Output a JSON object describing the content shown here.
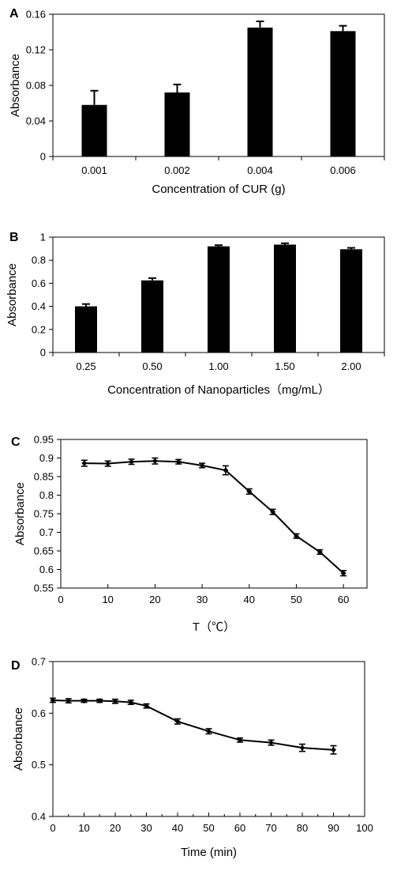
{
  "chart_data": [
    {
      "panel": "A",
      "type": "bar",
      "categories": [
        "0.001",
        "0.002",
        "0.004",
        "0.006"
      ],
      "values": [
        0.058,
        0.072,
        0.145,
        0.141
      ],
      "errors": [
        0.016,
        0.009,
        0.007,
        0.006
      ],
      "xlabel": "Concentration of CUR (g)",
      "ylabel": "Absorbance",
      "ylim": [
        0,
        0.16
      ],
      "yticks": [
        "0",
        "0.04",
        "0.08",
        "0.12",
        "0.16"
      ],
      "grid": false,
      "color": "#000000"
    },
    {
      "panel": "B",
      "type": "bar",
      "categories": [
        "0.25",
        "0.50",
        "1.00",
        "1.50",
        "2.00"
      ],
      "values": [
        0.4,
        0.625,
        0.92,
        0.935,
        0.895
      ],
      "errors": [
        0.02,
        0.02,
        0.01,
        0.012,
        0.012
      ],
      "xlabel": "Concentration of Nanoparticles（mg/mL）",
      "ylabel": "Absorbance",
      "ylim": [
        0,
        1
      ],
      "yticks": [
        "0",
        "0.2",
        "0.4",
        "0.6",
        "0.8",
        "1"
      ],
      "grid": false,
      "color": "#000000"
    },
    {
      "panel": "C",
      "type": "line",
      "x": [
        5,
        10,
        15,
        20,
        25,
        30,
        35,
        40,
        45,
        50,
        55,
        60
      ],
      "y": [
        0.886,
        0.885,
        0.89,
        0.892,
        0.89,
        0.88,
        0.867,
        0.81,
        0.755,
        0.69,
        0.647,
        0.59
      ],
      "errors": [
        0.008,
        0.007,
        0.007,
        0.008,
        0.006,
        0.006,
        0.012,
        0.007,
        0.007,
        0.006,
        0.006,
        0.007
      ],
      "xlabel": "T（℃）",
      "ylabel": "Absorbance",
      "xlim": [
        0,
        65
      ],
      "ylim": [
        0.55,
        0.95
      ],
      "xticks": [
        "0",
        "10",
        "20",
        "30",
        "40",
        "50",
        "60"
      ],
      "yticks": [
        "0.55",
        "0.6",
        "0.65",
        "0.7",
        "0.75",
        "0.8",
        "0.85",
        "0.9",
        "0.95"
      ],
      "grid": false,
      "color": "#000000"
    },
    {
      "panel": "D",
      "type": "line",
      "x": [
        0,
        5,
        10,
        15,
        20,
        25,
        30,
        40,
        50,
        60,
        70,
        80,
        90
      ],
      "y": [
        0.625,
        0.624,
        0.624,
        0.624,
        0.623,
        0.621,
        0.614,
        0.584,
        0.565,
        0.548,
        0.543,
        0.533,
        0.529
      ],
      "errors": [
        0.004,
        0.004,
        0.003,
        0.003,
        0.004,
        0.004,
        0.004,
        0.005,
        0.005,
        0.004,
        0.005,
        0.007,
        0.008
      ],
      "xlabel": "Time (min)",
      "ylabel": "Absorbance",
      "xlim": [
        0,
        100
      ],
      "ylim": [
        0.4,
        0.7
      ],
      "xticks": [
        "0",
        "10",
        "20",
        "30",
        "40",
        "50",
        "60",
        "70",
        "80",
        "90",
        "100"
      ],
      "yticks": [
        "0.4",
        "0.5",
        "0.6",
        "0.7"
      ],
      "grid": false,
      "color": "#000000"
    }
  ]
}
